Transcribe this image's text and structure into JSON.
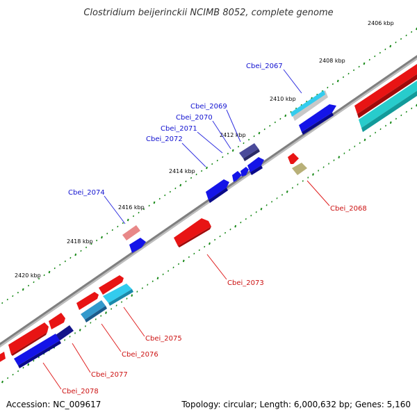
{
  "title": "Clostridium beijerinckii NCIMB 8052, complete genome",
  "footer": {
    "accession": "Accession: NC_009617",
    "summary": "Topology: circular; Length: 6,000,632 bp; Genes: 5,160"
  },
  "ticks": [
    "2406 kbp",
    "2408 kbp",
    "2410 kbp",
    "2412 kbp",
    "2414 kbp",
    "2416 kbp",
    "2418 kbp",
    "2420 kbp"
  ],
  "colors": {
    "backbone": "#7f7f7f",
    "tick_marks": "#1a8a1a",
    "label_plus": "#1010d0",
    "label_minus": "#cc1010",
    "leader_plus": "#3030e0",
    "leader_minus": "#e02020"
  },
  "genes": [
    {
      "id": "Cbei_2067",
      "strand": "+",
      "color": "#33ccee"
    },
    {
      "id": "Cbei_2068",
      "strand": "-",
      "color": "#b8b078"
    },
    {
      "id": "Cbei_2069",
      "strand": "+",
      "color": "#4a4a9a"
    },
    {
      "id": "Cbei_2070",
      "strand": "+",
      "color": "#1414e8"
    },
    {
      "id": "Cbei_2071",
      "strand": "+",
      "color": "#1414e8"
    },
    {
      "id": "Cbei_2072",
      "strand": "+",
      "color": "#1414e8"
    },
    {
      "id": "Cbei_2073",
      "strand": "-",
      "color": "#e81414"
    },
    {
      "id": "Cbei_2074",
      "strand": "+",
      "color": "#e88888"
    },
    {
      "id": "Cbei_2075",
      "strand": "-",
      "color": "#33ccee"
    },
    {
      "id": "Cbei_2076",
      "strand": "-",
      "color": "#3399cc"
    },
    {
      "id": "Cbei_2077",
      "strand": "-",
      "color": "#14148a"
    },
    {
      "id": "Cbei_2078",
      "strand": "-",
      "color": "#1414e8"
    }
  ]
}
